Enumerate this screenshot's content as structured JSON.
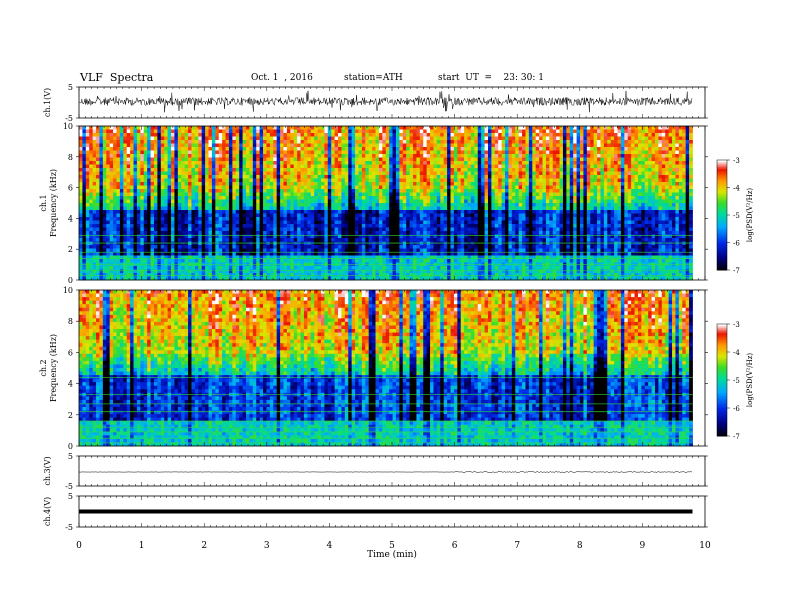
{
  "header": {
    "title": "VLF  Spectra",
    "date": "Oct. 1  , 2016",
    "station": "station=ATH",
    "start": "start  UT  =    23: 30: 1"
  },
  "chart_data": [
    {
      "type": "line",
      "title": "",
      "ylabel": "ch.1(V)",
      "ylim": [
        -5,
        5
      ],
      "yticks": [
        "5",
        "-5"
      ],
      "description_level": 0.5
    },
    {
      "type": "heatmap",
      "ylabel_top": "ch.1",
      "ylabel": "Frequency  (kHz)",
      "ylim": [
        0,
        10
      ],
      "yticks": [
        "0",
        "2",
        "4",
        "6",
        "8",
        "10"
      ],
      "colorbar": {
        "label": "log(PSD(V²/Hz)",
        "range": [
          -7,
          -3
        ],
        "ticks": [
          "-3",
          "-4",
          "-5",
          "-6",
          "-7"
        ]
      }
    },
    {
      "type": "heatmap",
      "ylabel_top": "ch.2",
      "ylabel": "Frequency  (kHz)",
      "ylim": [
        0,
        10
      ],
      "yticks": [
        "0",
        "2",
        "4",
        "6",
        "8",
        "10"
      ],
      "colorbar": {
        "label": "log(PSD(V²/Hz)",
        "range": [
          -7,
          -3
        ],
        "ticks": [
          "-3",
          "-4",
          "-5",
          "-6",
          "-7"
        ]
      }
    },
    {
      "type": "line",
      "ylabel": "ch.3(V)",
      "ylim": [
        -5,
        5
      ],
      "yticks": [
        "5",
        "-5"
      ]
    },
    {
      "type": "line",
      "ylabel": "ch.4(V)",
      "ylim": [
        -5,
        5
      ],
      "yticks": [
        "5",
        "-5"
      ]
    }
  ],
  "xaxis": {
    "label": "Time  (min)",
    "xlim": [
      0,
      10
    ],
    "ticks": [
      "0",
      "1",
      "2",
      "3",
      "4",
      "5",
      "6",
      "7",
      "8",
      "9",
      "10"
    ],
    "data_end": 9.8
  }
}
